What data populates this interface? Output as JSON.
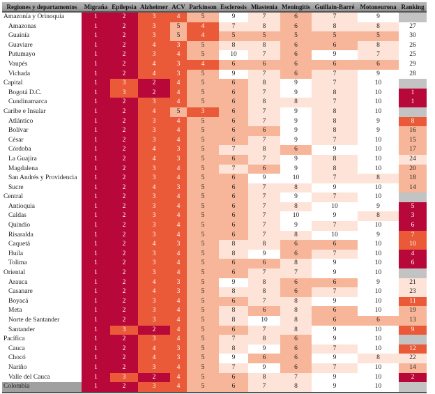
{
  "chart_data": {
    "type": "heatmap",
    "columns": [
      "Regiones y departamentos",
      "Migraña",
      "Epilepsia",
      "Alzheimer",
      "ACV",
      "Parkinson",
      "Esclerosis",
      "Miastenia",
      "Meningitis",
      "Guillain-Barré",
      "Motoneurona",
      "Ranking"
    ],
    "rows": [
      {
        "label": "Amazonía y Orinoquia",
        "region": true,
        "values": [
          1,
          2,
          3,
          4,
          5,
          9,
          7,
          6,
          7,
          9
        ],
        "ranking": null
      },
      {
        "label": "Amazonas",
        "values": [
          1,
          2,
          3,
          5,
          4,
          7,
          8,
          6,
          8,
          8
        ],
        "ranking": 27
      },
      {
        "label": "Guainía",
        "values": [
          1,
          2,
          3,
          5,
          4,
          5,
          5,
          5,
          5,
          5
        ],
        "ranking": 30
      },
      {
        "label": "Guaviare",
        "values": [
          1,
          2,
          4,
          3,
          5,
          8,
          8,
          6,
          6,
          8
        ],
        "ranking": 26
      },
      {
        "label": "Putumayo",
        "values": [
          1,
          2,
          3,
          4,
          5,
          10,
          7,
          6,
          9,
          7
        ],
        "ranking": 25
      },
      {
        "label": "Vaupés",
        "values": [
          1,
          2,
          4,
          3,
          4,
          6,
          6,
          6,
          6,
          6
        ],
        "ranking": 29
      },
      {
        "label": "Vichada",
        "values": [
          1,
          2,
          4,
          3,
          5,
          9,
          7,
          6,
          7,
          9
        ],
        "ranking": 28
      },
      {
        "label": "Capital",
        "region": true,
        "values": [
          1,
          3,
          2,
          4,
          5,
          6,
          8,
          9,
          7,
          10
        ],
        "ranking": null
      },
      {
        "label": "Bogotá D.C.",
        "values": [
          1,
          3,
          2,
          4,
          5,
          6,
          7,
          9,
          8,
          10
        ],
        "ranking": 1
      },
      {
        "label": "Cundinamarca",
        "values": [
          1,
          2,
          3,
          4,
          5,
          6,
          8,
          8,
          7,
          10
        ],
        "ranking": 1
      },
      {
        "label": "Caribe e Insular",
        "region": true,
        "values": [
          1,
          2,
          4,
          5,
          3,
          6,
          7,
          9,
          8,
          10
        ],
        "ranking": null
      },
      {
        "label": "Atlántico",
        "values": [
          1,
          2,
          3,
          4,
          5,
          6,
          7,
          9,
          8,
          9
        ],
        "ranking": 8
      },
      {
        "label": "Bolívar",
        "values": [
          1,
          2,
          3,
          4,
          5,
          6,
          6,
          9,
          8,
          9
        ],
        "ranking": 16
      },
      {
        "label": "César",
        "values": [
          1,
          2,
          3,
          4,
          5,
          6,
          7,
          9,
          7,
          10
        ],
        "ranking": 15
      },
      {
        "label": "Córdoba",
        "values": [
          1,
          2,
          4,
          3,
          5,
          7,
          8,
          6,
          9,
          10
        ],
        "ranking": 17
      },
      {
        "label": "La Guajira",
        "values": [
          1,
          2,
          4,
          3,
          5,
          6,
          7,
          9,
          8,
          10
        ],
        "ranking": 24
      },
      {
        "label": "Magdalena",
        "values": [
          1,
          2,
          3,
          4,
          5,
          7,
          6,
          9,
          8,
          10
        ],
        "ranking": 20
      },
      {
        "label": "San Andrés y Providencia",
        "values": [
          1,
          2,
          3,
          4,
          5,
          6,
          9,
          10,
          7,
          8
        ],
        "ranking": 18
      },
      {
        "label": "Sucre",
        "values": [
          1,
          2,
          4,
          3,
          5,
          6,
          7,
          8,
          9,
          10
        ],
        "ranking": 14
      },
      {
        "label": "Central",
        "region": true,
        "values": [
          1,
          2,
          3,
          4,
          5,
          6,
          7,
          9,
          7,
          10
        ],
        "ranking": null
      },
      {
        "label": "Antioquia",
        "values": [
          1,
          2,
          3,
          4,
          5,
          6,
          7,
          8,
          10,
          9
        ],
        "ranking": 5
      },
      {
        "label": "Caldas",
        "values": [
          1,
          2,
          3,
          4,
          5,
          6,
          7,
          10,
          9,
          8
        ],
        "ranking": 3
      },
      {
        "label": "Quindío",
        "values": [
          1,
          2,
          3,
          4,
          5,
          6,
          7,
          9,
          7,
          10
        ],
        "ranking": 6
      },
      {
        "label": "Risaralda",
        "values": [
          1,
          2,
          3,
          4,
          5,
          6,
          7,
          8,
          10,
          9
        ],
        "ranking": 7
      },
      {
        "label": "Caquetá",
        "values": [
          1,
          2,
          4,
          3,
          5,
          8,
          8,
          6,
          6,
          10
        ],
        "ranking": 10
      },
      {
        "label": "Huila",
        "values": [
          1,
          2,
          3,
          4,
          5,
          8,
          9,
          6,
          7,
          10
        ],
        "ranking": 4
      },
      {
        "label": "Tolima",
        "values": [
          1,
          2,
          3,
          4,
          5,
          6,
          6,
          8,
          9,
          10
        ],
        "ranking": 6
      },
      {
        "label": "Oriental",
        "region": true,
        "values": [
          1,
          2,
          3,
          4,
          5,
          6,
          7,
          7,
          9,
          10
        ],
        "ranking": null
      },
      {
        "label": "Arauca",
        "values": [
          1,
          2,
          4,
          3,
          5,
          9,
          8,
          6,
          6,
          9
        ],
        "ranking": 21
      },
      {
        "label": "Casanare",
        "values": [
          1,
          2,
          4,
          3,
          5,
          8,
          8,
          6,
          7,
          10
        ],
        "ranking": 23
      },
      {
        "label": "Boyacá",
        "values": [
          1,
          2,
          3,
          4,
          5,
          6,
          7,
          8,
          9,
          10
        ],
        "ranking": 11
      },
      {
        "label": "Meta",
        "values": [
          1,
          2,
          3,
          4,
          5,
          8,
          6,
          8,
          6,
          10
        ],
        "ranking": 19
      },
      {
        "label": "Norte de Santander",
        "values": [
          1,
          2,
          3,
          4,
          5,
          8,
          10,
          8,
          6,
          6
        ],
        "ranking": 13
      },
      {
        "label": "Santander",
        "values": [
          1,
          3,
          2,
          4,
          5,
          6,
          7,
          8,
          9,
          10
        ],
        "ranking": 9
      },
      {
        "label": "Pacífica",
        "region": true,
        "values": [
          1,
          2,
          3,
          4,
          5,
          7,
          8,
          6,
          9,
          10
        ],
        "ranking": null
      },
      {
        "label": "Cauca",
        "values": [
          1,
          2,
          4,
          3,
          5,
          8,
          9,
          6,
          7,
          10
        ],
        "ranking": 12
      },
      {
        "label": "Chocó",
        "values": [
          1,
          2,
          4,
          3,
          5,
          9,
          6,
          6,
          9,
          8
        ],
        "ranking": 22
      },
      {
        "label": "Nariño",
        "values": [
          1,
          2,
          3,
          4,
          5,
          7,
          9,
          6,
          7,
          10
        ],
        "ranking": 14
      },
      {
        "label": "Valle del Cauca",
        "values": [
          1,
          3,
          2,
          4,
          5,
          6,
          8,
          7,
          9,
          10
        ],
        "ranking": 2
      },
      {
        "label": "Colombia",
        "country": true,
        "values": [
          1,
          2,
          3,
          4,
          5,
          6,
          7,
          8,
          9,
          10
        ],
        "ranking": null
      }
    ],
    "colors": {
      "dark": "#b8083a",
      "orange": "#ea5a38",
      "peach": "#f7b699",
      "light": "#fde3d8",
      "white": "#ffffff",
      "gray": "#c3c3c3"
    }
  }
}
